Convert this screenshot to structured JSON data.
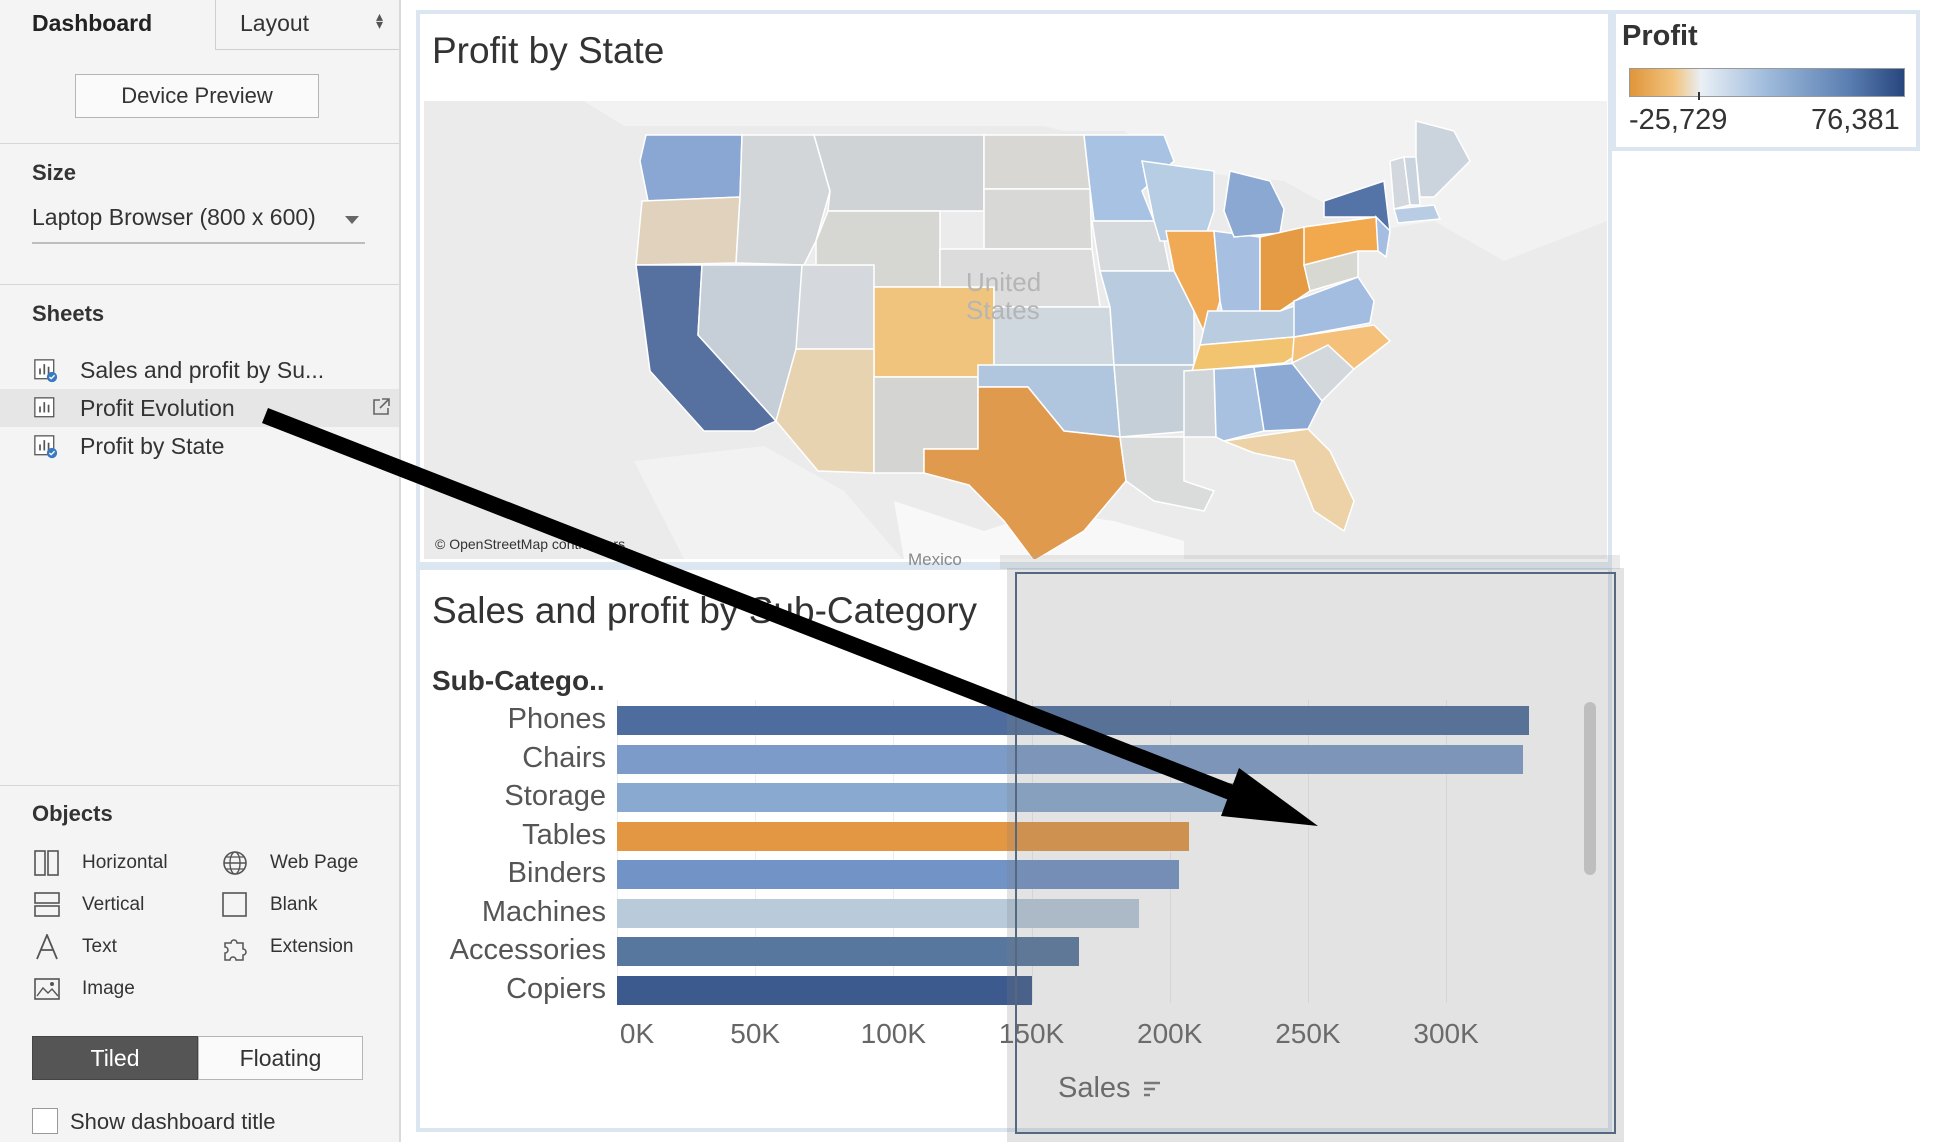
{
  "tabs": {
    "dashboard": "Dashboard",
    "layout": "Layout"
  },
  "device_preview": "Device Preview",
  "size": {
    "heading": "Size",
    "value": "Laptop Browser (800 x 600)"
  },
  "sheets": {
    "heading": "Sheets",
    "items": [
      {
        "label": "Sales and profit by Su...",
        "used": true
      },
      {
        "label": "Profit Evolution",
        "used": false,
        "selected": true
      },
      {
        "label": "Profit by State",
        "used": true
      }
    ]
  },
  "objects": {
    "heading": "Objects",
    "items": [
      {
        "label": "Horizontal",
        "icon": "horizontal-icon"
      },
      {
        "label": "Web Page",
        "icon": "globe-icon"
      },
      {
        "label": "Vertical",
        "icon": "vertical-icon"
      },
      {
        "label": "Blank",
        "icon": "blank-icon"
      },
      {
        "label": "Text",
        "icon": "text-icon"
      },
      {
        "label": "Extension",
        "icon": "puzzle-icon"
      },
      {
        "label": "Image",
        "icon": "image-icon"
      }
    ]
  },
  "layout_mode": {
    "tiled": "Tiled",
    "floating": "Floating",
    "selected": "Tiled"
  },
  "show_title": {
    "label": "Show dashboard title",
    "checked": false
  },
  "map_sheet": {
    "title": "Profit by State",
    "credit": "© OpenStreetMap contributors",
    "country_label": "United States",
    "mexico_label": "Mexico"
  },
  "legend": {
    "title": "Profit",
    "min": "-25,729",
    "max": "76,381"
  },
  "bar_sheet": {
    "title": "Sales and profit by Sub-Category",
    "column_header": "Sub-Catego..",
    "axis_title": "Sales"
  },
  "chart_data": {
    "type": "bar",
    "orientation": "horizontal",
    "title": "Sales and profit by Sub-Category",
    "categories": [
      "Phones",
      "Chairs",
      "Storage",
      "Tables",
      "Binders",
      "Machines",
      "Accessories",
      "Copiers"
    ],
    "values": [
      330000,
      328000,
      224000,
      207000,
      203500,
      189000,
      167000,
      150000
    ],
    "colors": [
      "#4e6d9e",
      "#7d9bc9",
      "#89a9d0",
      "#e49743",
      "#7293c5",
      "#b9cbdb",
      "#57779f",
      "#3c5a8e"
    ],
    "xlabel": "Sales",
    "xlim": [
      0,
      350000
    ],
    "tick_labels": [
      "0K",
      "50K",
      "100K",
      "150K",
      "200K",
      "250K",
      "300K"
    ],
    "tick_values": [
      0,
      50000,
      100000,
      150000,
      200000,
      250000,
      300000
    ],
    "color_legend": "Profit"
  }
}
